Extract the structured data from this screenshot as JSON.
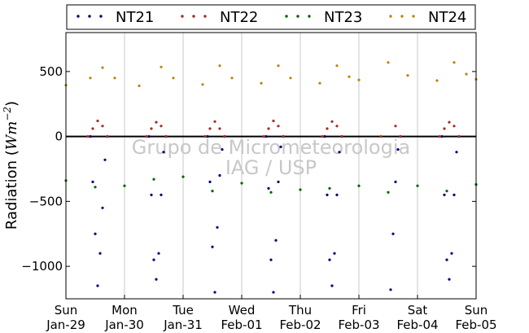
{
  "chart_data": {
    "type": "scatter",
    "ylabel": "Radiation (Wm⁻²)",
    "ylabel_parts": [
      "Radiation (",
      "Wm",
      "−2",
      ")"
    ],
    "ylim": [
      -1250,
      800
    ],
    "yticks": [
      -1000,
      -500,
      0,
      500
    ],
    "ytick_labels": [
      "−1000",
      "−500",
      "0",
      "500"
    ],
    "xlim": [
      "2012-01-29 00:00",
      "2012-02-05 00:00"
    ],
    "xticks": [
      {
        "x": "2012-01-29",
        "day": "Sun",
        "date": "Jan-29"
      },
      {
        "x": "2012-01-30",
        "day": "Mon",
        "date": "Jan-30"
      },
      {
        "x": "2012-01-31",
        "day": "Tue",
        "date": "Jan-31"
      },
      {
        "x": "2012-02-01",
        "day": "Wed",
        "date": "Feb-01"
      },
      {
        "x": "2012-02-02",
        "day": "Thu",
        "date": "Feb-02"
      },
      {
        "x": "2012-02-03",
        "day": "Fri",
        "date": "Feb-03"
      },
      {
        "x": "2012-02-04",
        "day": "Sat",
        "date": "Feb-04"
      },
      {
        "x": "2012-02-05",
        "day": "Sun",
        "date": "Feb-05"
      }
    ],
    "grid": "vertical",
    "legend_position": "top",
    "watermark": [
      "Grupo de Micrometeorologia",
      "IAG / USP"
    ],
    "series": [
      {
        "name": "NT21",
        "color": "#00007f",
        "points": [
          [
            "2012-01-29 10:00",
            0
          ],
          [
            "2012-01-29 11:00",
            -350
          ],
          [
            "2012-01-29 12:00",
            -750
          ],
          [
            "2012-01-29 13:00",
            -1150
          ],
          [
            "2012-01-29 14:00",
            -900
          ],
          [
            "2012-01-29 15:00",
            -550
          ],
          [
            "2012-01-29 16:00",
            -180
          ],
          [
            "2012-01-29 17:00",
            0
          ],
          [
            "2012-01-30 10:00",
            0
          ],
          [
            "2012-01-30 11:00",
            -450
          ],
          [
            "2012-01-30 12:00",
            -950
          ],
          [
            "2012-01-30 13:00",
            -1100
          ],
          [
            "2012-01-30 14:00",
            -900
          ],
          [
            "2012-01-30 15:00",
            -450
          ],
          [
            "2012-01-30 16:00",
            -120
          ],
          [
            "2012-01-30 17:00",
            0
          ],
          [
            "2012-01-31 10:00",
            0
          ],
          [
            "2012-01-31 11:00",
            -350
          ],
          [
            "2012-01-31 12:00",
            -850
          ],
          [
            "2012-01-31 13:00",
            -1200
          ],
          [
            "2012-01-31 14:00",
            -700
          ],
          [
            "2012-01-31 15:00",
            -300
          ],
          [
            "2012-01-31 16:00",
            -100
          ],
          [
            "2012-01-31 17:00",
            0
          ],
          [
            "2012-02-01 10:00",
            0
          ],
          [
            "2012-02-01 11:00",
            -400
          ],
          [
            "2012-02-01 12:00",
            -950
          ],
          [
            "2012-02-01 13:00",
            -1200
          ],
          [
            "2012-02-01 14:00",
            -800
          ],
          [
            "2012-02-01 15:00",
            -350
          ],
          [
            "2012-02-01 16:00",
            -80
          ],
          [
            "2012-02-01 17:00",
            0
          ],
          [
            "2012-02-02 10:00",
            0
          ],
          [
            "2012-02-02 11:00",
            -450
          ],
          [
            "2012-02-02 12:00",
            -950
          ],
          [
            "2012-02-02 13:00",
            -1150
          ],
          [
            "2012-02-02 14:00",
            -900
          ],
          [
            "2012-02-02 15:00",
            -450
          ],
          [
            "2012-02-02 16:00",
            -120
          ],
          [
            "2012-02-02 17:00",
            0
          ],
          [
            "2012-02-03 13:00",
            -1180
          ],
          [
            "2012-02-03 14:00",
            -750
          ],
          [
            "2012-02-03 15:00",
            -350
          ],
          [
            "2012-02-03 16:00",
            -100
          ],
          [
            "2012-02-03 17:00",
            0
          ],
          [
            "2012-02-04 10:00",
            0
          ],
          [
            "2012-02-04 11:00",
            -450
          ],
          [
            "2012-02-04 12:00",
            -950
          ],
          [
            "2012-02-04 13:00",
            -1100
          ],
          [
            "2012-02-04 14:00",
            -900
          ],
          [
            "2012-02-04 15:00",
            -450
          ],
          [
            "2012-02-04 16:00",
            -120
          ],
          [
            "2012-02-04 17:00",
            0
          ]
        ]
      },
      {
        "name": "NT22",
        "color": "#a52a2a",
        "points": [
          [
            "2012-01-29 09:00",
            0
          ],
          [
            "2012-01-29 11:00",
            60
          ],
          [
            "2012-01-29 13:00",
            120
          ],
          [
            "2012-01-29 15:00",
            80
          ],
          [
            "2012-01-29 17:00",
            0
          ],
          [
            "2012-01-30 09:00",
            0
          ],
          [
            "2012-01-30 11:00",
            60
          ],
          [
            "2012-01-30 13:00",
            110
          ],
          [
            "2012-01-30 15:00",
            80
          ],
          [
            "2012-01-30 17:00",
            0
          ],
          [
            "2012-01-31 09:00",
            0
          ],
          [
            "2012-01-31 11:00",
            60
          ],
          [
            "2012-01-31 13:00",
            115
          ],
          [
            "2012-01-31 15:00",
            60
          ],
          [
            "2012-01-31 17:00",
            0
          ],
          [
            "2012-02-01 09:00",
            0
          ],
          [
            "2012-02-01 11:00",
            60
          ],
          [
            "2012-02-01 13:00",
            120
          ],
          [
            "2012-02-01 15:00",
            80
          ],
          [
            "2012-02-01 17:00",
            0
          ],
          [
            "2012-02-02 09:00",
            0
          ],
          [
            "2012-02-02 11:00",
            60
          ],
          [
            "2012-02-02 13:00",
            115
          ],
          [
            "2012-02-02 15:00",
            80
          ],
          [
            "2012-02-02 17:00",
            0
          ],
          [
            "2012-02-03 09:00",
            0
          ],
          [
            "2012-02-03 15:00",
            80
          ],
          [
            "2012-02-03 17:00",
            0
          ],
          [
            "2012-02-04 09:00",
            0
          ],
          [
            "2012-02-04 11:00",
            60
          ],
          [
            "2012-02-04 13:00",
            110
          ],
          [
            "2012-02-04 15:00",
            80
          ],
          [
            "2012-02-04 17:00",
            0
          ]
        ]
      },
      {
        "name": "NT23",
        "color": "#006400",
        "points": [
          [
            "2012-01-29 00:00",
            -340
          ],
          [
            "2012-01-29 12:00",
            -390
          ],
          [
            "2012-01-30 00:00",
            -380
          ],
          [
            "2012-01-30 12:00",
            -330
          ],
          [
            "2012-01-31 00:00",
            -310
          ],
          [
            "2012-01-31 12:00",
            -420
          ],
          [
            "2012-02-01 00:00",
            -360
          ],
          [
            "2012-02-01 12:00",
            -430
          ],
          [
            "2012-02-02 00:00",
            -410
          ],
          [
            "2012-02-02 12:00",
            -400
          ],
          [
            "2012-02-03 00:00",
            -380
          ],
          [
            "2012-02-03 12:00",
            -430
          ],
          [
            "2012-02-04 00:00",
            -380
          ],
          [
            "2012-02-04 12:00",
            -420
          ],
          [
            "2012-02-05 00:00",
            -370
          ]
        ]
      },
      {
        "name": "NT24",
        "color": "#b8860b",
        "points": [
          [
            "2012-01-29 00:00",
            395
          ],
          [
            "2012-01-29 10:00",
            450
          ],
          [
            "2012-01-29 15:00",
            530
          ],
          [
            "2012-01-29 20:00",
            450
          ],
          [
            "2012-01-30 06:00",
            390
          ],
          [
            "2012-01-30 15:00",
            535
          ],
          [
            "2012-01-30 20:00",
            450
          ],
          [
            "2012-01-31 08:00",
            400
          ],
          [
            "2012-01-31 15:00",
            545
          ],
          [
            "2012-01-31 20:00",
            450
          ],
          [
            "2012-02-01 08:00",
            410
          ],
          [
            "2012-02-01 15:00",
            545
          ],
          [
            "2012-02-01 20:00",
            450
          ],
          [
            "2012-02-02 08:00",
            410
          ],
          [
            "2012-02-02 15:00",
            545
          ],
          [
            "2012-02-02 20:00",
            460
          ],
          [
            "2012-02-03 00:00",
            435
          ],
          [
            "2012-02-03 12:00",
            570
          ],
          [
            "2012-02-03 20:00",
            470
          ],
          [
            "2012-02-04 08:00",
            430
          ],
          [
            "2012-02-04 15:00",
            570
          ],
          [
            "2012-02-04 20:00",
            480
          ],
          [
            "2012-02-05 00:00",
            440
          ]
        ]
      }
    ]
  }
}
